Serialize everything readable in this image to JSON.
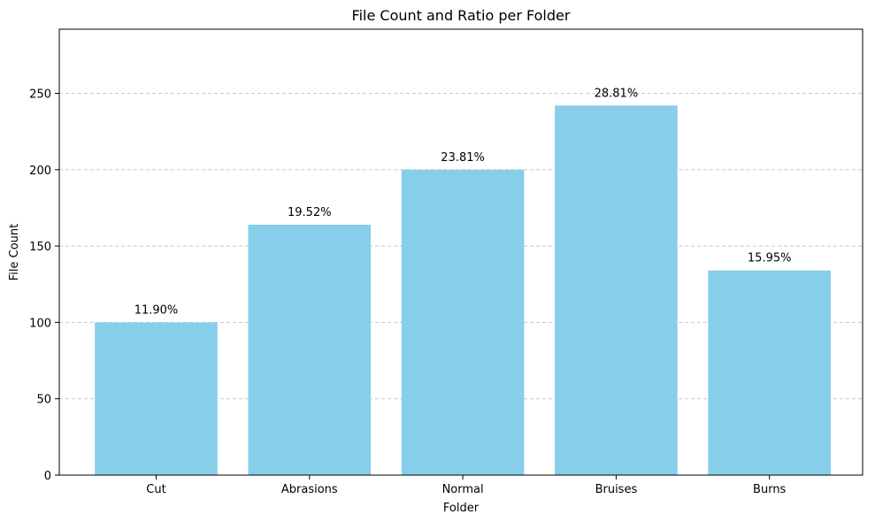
{
  "chart_data": {
    "type": "bar",
    "title": "File Count and Ratio per Folder",
    "xlabel": "Folder",
    "ylabel": "File Count",
    "categories": [
      "Cut",
      "Abrasions",
      "Normal",
      "Bruises",
      "Burns"
    ],
    "values": [
      100,
      164,
      200,
      242,
      134
    ],
    "data_labels": [
      "11.90%",
      "19.52%",
      "23.81%",
      "28.81%",
      "15.95%"
    ],
    "ylim": [
      0,
      292
    ],
    "yticks": [
      0,
      50,
      100,
      150,
      200,
      250
    ],
    "ytick_labels": [
      "0",
      "50",
      "100",
      "150",
      "200",
      "250"
    ],
    "grid": "y-dashed",
    "bar_color": "#87CEEB",
    "grid_color": "#c8c8c8"
  }
}
